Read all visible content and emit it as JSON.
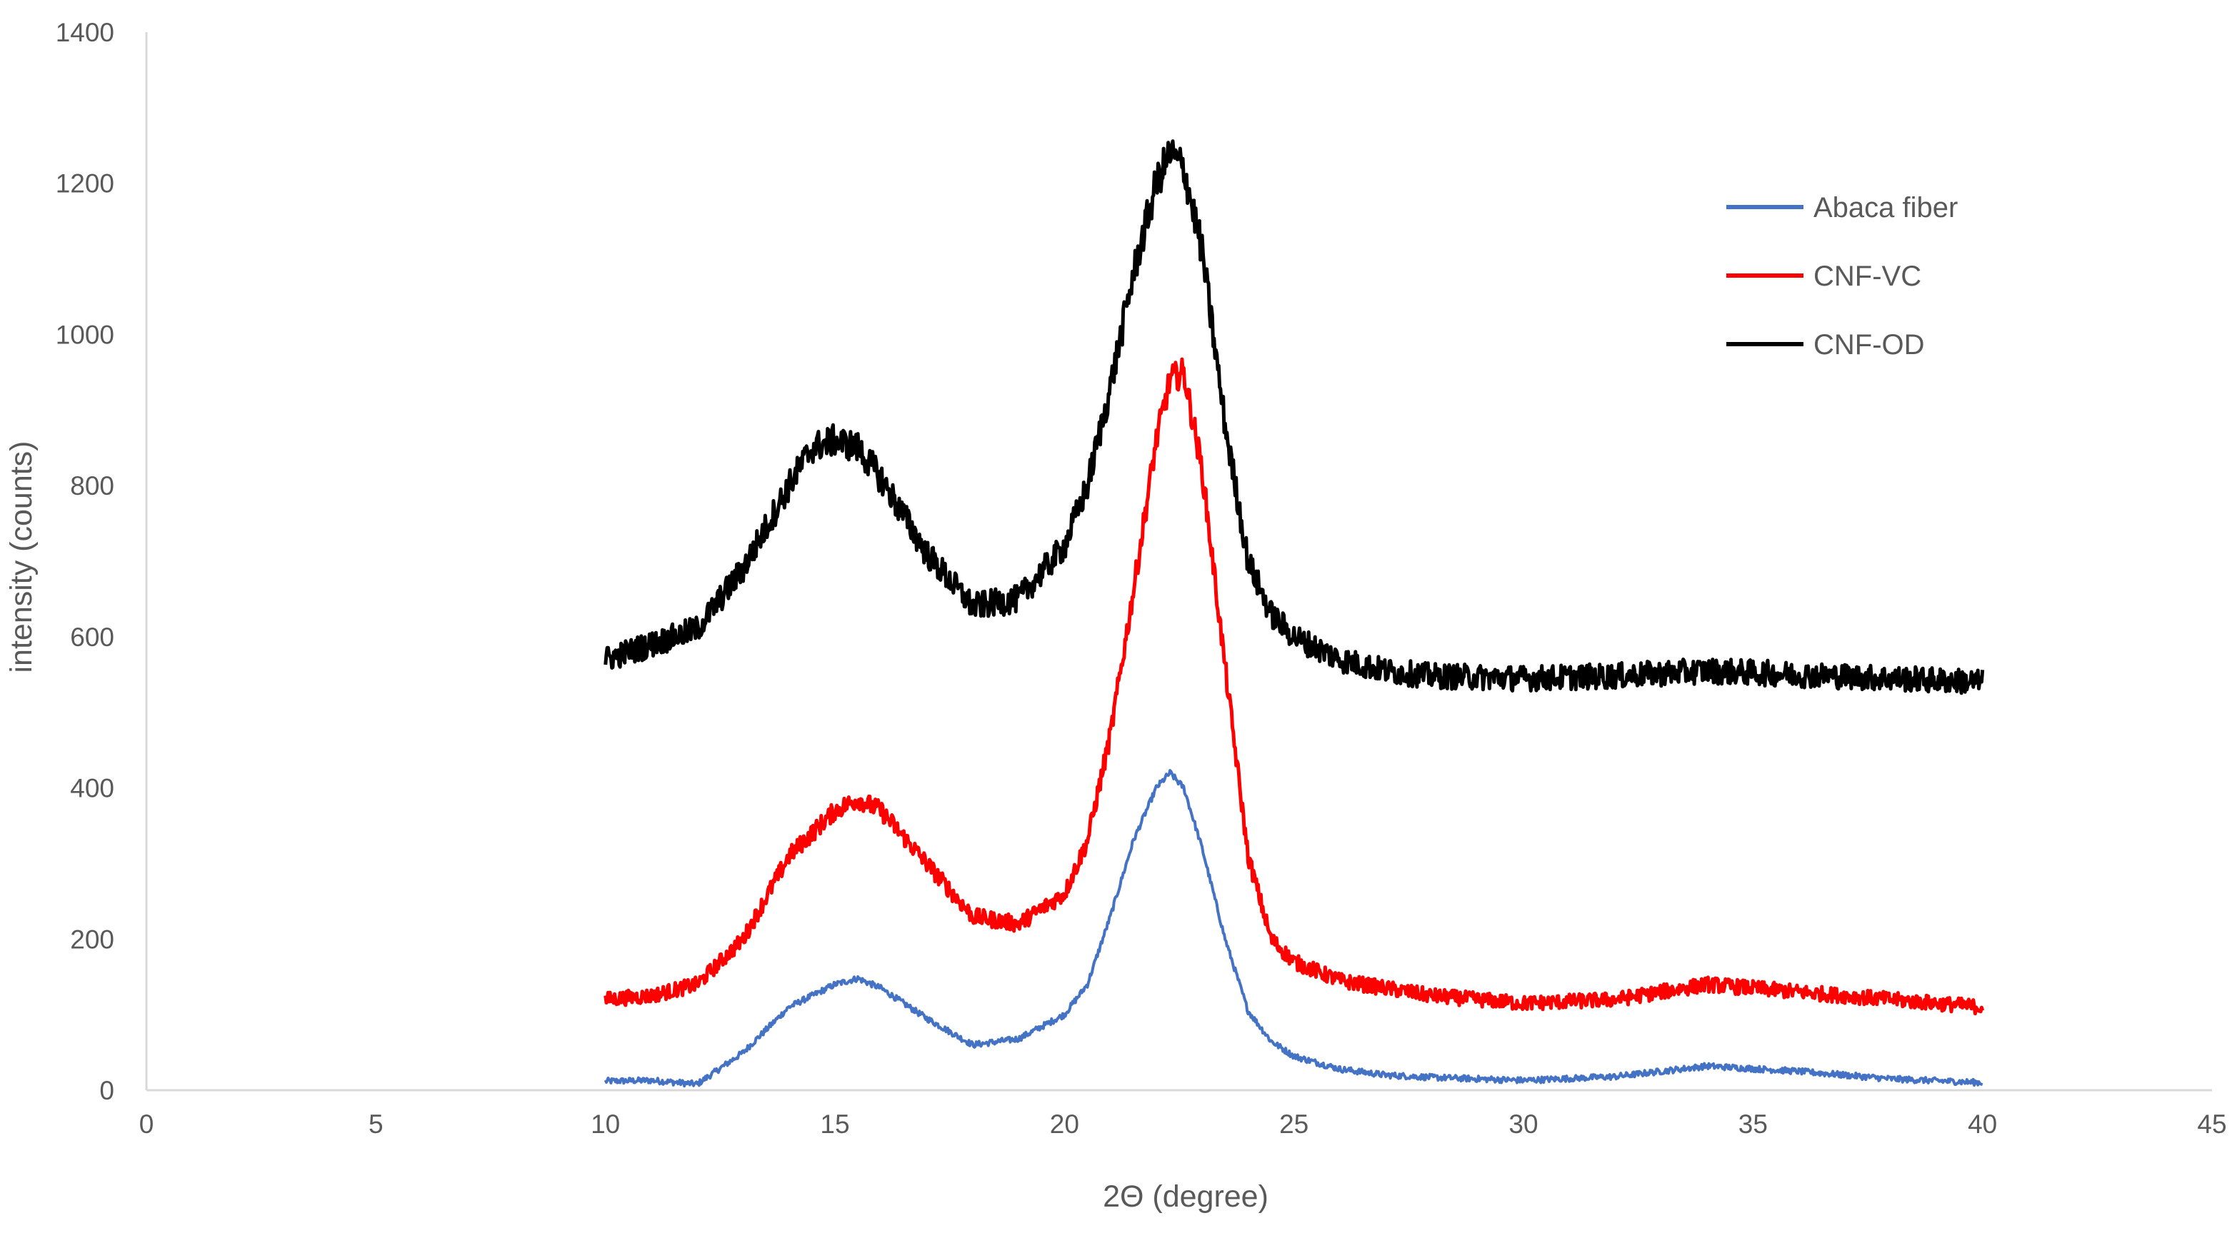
{
  "chart_data": {
    "type": "line",
    "title": "",
    "xlabel": "2Θ (degree)",
    "ylabel": "intensity (counts)",
    "xlim": [
      0,
      45
    ],
    "ylim": [
      0,
      1400
    ],
    "xticks": [
      0,
      5,
      10,
      15,
      20,
      25,
      30,
      35,
      40,
      45
    ],
    "yticks": [
      0,
      200,
      400,
      600,
      800,
      1000,
      1200,
      1400
    ],
    "grid": false,
    "legend_position": "right",
    "series": [
      {
        "name": "Abaca fiber",
        "color": "#4472c4",
        "x": [
          10,
          11,
          12,
          13,
          14,
          15,
          15.5,
          16,
          17,
          18,
          19,
          20,
          20.5,
          21,
          21.5,
          22,
          22.3,
          22.6,
          23,
          23.5,
          24,
          24.5,
          25,
          26,
          27,
          28,
          30,
          32,
          34,
          36,
          38,
          40
        ],
        "y": [
          12,
          13,
          8,
          50,
          110,
          140,
          148,
          135,
          95,
          60,
          68,
          100,
          140,
          230,
          330,
          400,
          420,
          400,
          320,
          200,
          105,
          65,
          45,
          28,
          20,
          17,
          13,
          18,
          32,
          25,
          15,
          10
        ]
      },
      {
        "name": "CNF-VC",
        "color": "#ff0000",
        "x": [
          10,
          11,
          12,
          13,
          14,
          15,
          15.5,
          16,
          17,
          18,
          19,
          20,
          20.5,
          21,
          21.5,
          22,
          22.3,
          22.6,
          23,
          23.5,
          24,
          24.5,
          25,
          26,
          27,
          28,
          30,
          32,
          34,
          36,
          38,
          40
        ],
        "y": [
          120,
          125,
          140,
          200,
          310,
          370,
          385,
          370,
          300,
          230,
          220,
          260,
          330,
          470,
          660,
          860,
          940,
          950,
          820,
          560,
          310,
          200,
          170,
          145,
          135,
          125,
          115,
          120,
          140,
          130,
          120,
          110
        ]
      },
      {
        "name": "CNF-OD",
        "color": "#000000",
        "x": [
          10,
          11,
          12,
          13,
          14,
          14.5,
          15,
          15.5,
          16,
          17,
          18,
          19,
          20,
          20.5,
          21,
          21.5,
          22,
          22.3,
          22.6,
          23,
          23.5,
          24,
          24.5,
          25,
          26,
          27,
          28,
          30,
          32,
          34,
          36,
          38,
          40
        ],
        "y": [
          570,
          590,
          610,
          690,
          800,
          850,
          860,
          850,
          810,
          710,
          640,
          650,
          720,
          800,
          930,
          1080,
          1200,
          1240,
          1220,
          1110,
          880,
          700,
          630,
          600,
          570,
          555,
          548,
          545,
          548,
          555,
          550,
          545,
          540
        ]
      }
    ]
  }
}
